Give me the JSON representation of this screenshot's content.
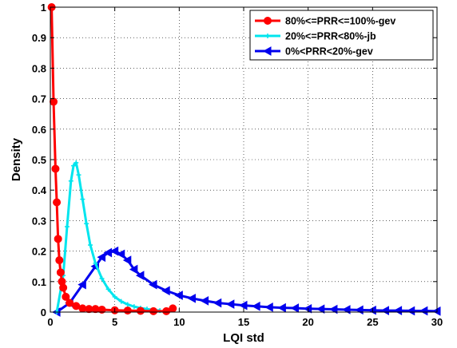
{
  "chart_data": {
    "type": "line",
    "xlabel": "LQI std",
    "ylabel": "Density",
    "xlim": [
      0,
      30
    ],
    "ylim": [
      0,
      1
    ],
    "x_ticks": [
      "0",
      "5",
      "10",
      "15",
      "20",
      "25",
      "30"
    ],
    "y_ticks": [
      "0",
      "0.1",
      "0.2",
      "0.3",
      "0.4",
      "0.5",
      "0.6",
      "0.7",
      "0.8",
      "0.9",
      "1"
    ],
    "grid": true,
    "legend_position": "top-right",
    "series": [
      {
        "name": "80%<=PRR<=100%-gev",
        "color": "#ff0000",
        "marker": "circle",
        "x": [
          0.1,
          0.25,
          0.4,
          0.5,
          0.6,
          0.7,
          0.8,
          0.9,
          1.0,
          1.2,
          1.5,
          2.0,
          2.5,
          3.0,
          3.5,
          4.0,
          5.0,
          6.0,
          7.0,
          8.0,
          9.0,
          9.5
        ],
        "y": [
          1.0,
          0.69,
          0.47,
          0.36,
          0.24,
          0.17,
          0.13,
          0.1,
          0.08,
          0.05,
          0.03,
          0.02,
          0.012,
          0.01,
          0.01,
          0.008,
          0.006,
          0.005,
          0.004,
          0.003,
          0.003,
          0.012
        ]
      },
      {
        "name": "20%<=PRR<80%-jb",
        "color": "#00e5ee",
        "marker": "plus",
        "x": [
          0.5,
          1.0,
          1.3,
          1.6,
          1.8,
          2.0,
          2.2,
          2.5,
          2.8,
          3.1,
          3.5,
          4.0,
          4.5,
          5.0,
          5.5,
          6.0,
          6.5,
          7.0,
          7.5,
          8.0,
          8.5
        ],
        "y": [
          0.0,
          0.12,
          0.28,
          0.43,
          0.48,
          0.49,
          0.45,
          0.37,
          0.29,
          0.22,
          0.16,
          0.11,
          0.075,
          0.05,
          0.035,
          0.025,
          0.018,
          0.013,
          0.01,
          0.007,
          0.005
        ]
      },
      {
        "name": "0%<PRR<20%-gev",
        "color": "#0000ee",
        "marker": "triangle-left",
        "x": [
          0.5,
          1.5,
          2.5,
          3.5,
          4.0,
          4.5,
          5.0,
          5.5,
          6.0,
          6.5,
          7.0,
          8.0,
          9.0,
          10.0,
          11.0,
          12.0,
          13.0,
          14.0,
          15.0,
          16.0,
          17.0,
          18.0,
          19.0,
          20.0,
          21.0,
          22.0,
          23.0,
          24.0,
          25.0,
          26.0,
          27.0,
          28.0,
          29.0,
          30.0
        ],
        "y": [
          0.0,
          0.03,
          0.09,
          0.15,
          0.18,
          0.195,
          0.2,
          0.19,
          0.17,
          0.14,
          0.12,
          0.09,
          0.07,
          0.055,
          0.045,
          0.037,
          0.03,
          0.026,
          0.022,
          0.019,
          0.016,
          0.014,
          0.013,
          0.011,
          0.01,
          0.009,
          0.008,
          0.007,
          0.006,
          0.005,
          0.005,
          0.004,
          0.004,
          0.003
        ]
      }
    ]
  }
}
